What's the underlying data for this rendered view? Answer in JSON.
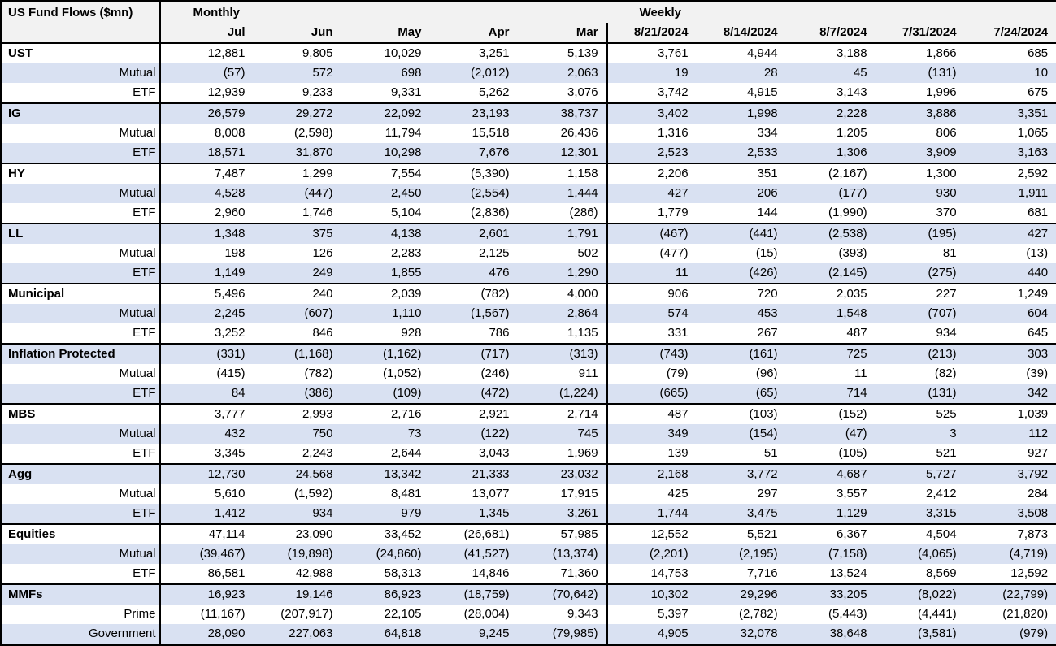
{
  "colors": {
    "band": "#d9e1f2",
    "header_bg": "#f2f2f2",
    "border": "#000000",
    "text": "#000000"
  },
  "chart_data": {
    "type": "table",
    "title": "US Fund Flows ($mn)",
    "sections": [
      {
        "label": "Monthly",
        "columns": [
          "Jul",
          "Jun",
          "May",
          "Apr",
          "Mar"
        ]
      },
      {
        "label": "Weekly",
        "columns": [
          "8/21/2024",
          "8/14/2024",
          "8/7/2024",
          "7/31/2024",
          "7/24/2024"
        ]
      }
    ],
    "groups": [
      {
        "rows": [
          {
            "label": "UST",
            "monthly": [
              "12,881",
              "9,805",
              "10,029",
              "3,251",
              "5,139"
            ],
            "weekly": [
              "3,761",
              "4,944",
              "3,188",
              "1,866",
              "685"
            ]
          },
          {
            "label": "Mutual",
            "monthly": [
              "(57)",
              "572",
              "698",
              "(2,012)",
              "2,063"
            ],
            "weekly": [
              "19",
              "28",
              "45",
              "(131)",
              "10"
            ]
          },
          {
            "label": "ETF",
            "monthly": [
              "12,939",
              "9,233",
              "9,331",
              "5,262",
              "3,076"
            ],
            "weekly": [
              "3,742",
              "4,915",
              "3,143",
              "1,996",
              "675"
            ]
          }
        ]
      },
      {
        "rows": [
          {
            "label": "IG",
            "monthly": [
              "26,579",
              "29,272",
              "22,092",
              "23,193",
              "38,737"
            ],
            "weekly": [
              "3,402",
              "1,998",
              "2,228",
              "3,886",
              "3,351"
            ]
          },
          {
            "label": "Mutual",
            "monthly": [
              "8,008",
              "(2,598)",
              "11,794",
              "15,518",
              "26,436"
            ],
            "weekly": [
              "1,316",
              "334",
              "1,205",
              "806",
              "1,065"
            ]
          },
          {
            "label": "ETF",
            "monthly": [
              "18,571",
              "31,870",
              "10,298",
              "7,676",
              "12,301"
            ],
            "weekly": [
              "2,523",
              "2,533",
              "1,306",
              "3,909",
              "3,163"
            ]
          }
        ]
      },
      {
        "rows": [
          {
            "label": "HY",
            "monthly": [
              "7,487",
              "1,299",
              "7,554",
              "(5,390)",
              "1,158"
            ],
            "weekly": [
              "2,206",
              "351",
              "(2,167)",
              "1,300",
              "2,592"
            ]
          },
          {
            "label": "Mutual",
            "monthly": [
              "4,528",
              "(447)",
              "2,450",
              "(2,554)",
              "1,444"
            ],
            "weekly": [
              "427",
              "206",
              "(177)",
              "930",
              "1,911"
            ]
          },
          {
            "label": "ETF",
            "monthly": [
              "2,960",
              "1,746",
              "5,104",
              "(2,836)",
              "(286)"
            ],
            "weekly": [
              "1,779",
              "144",
              "(1,990)",
              "370",
              "681"
            ]
          }
        ]
      },
      {
        "rows": [
          {
            "label": "LL",
            "monthly": [
              "1,348",
              "375",
              "4,138",
              "2,601",
              "1,791"
            ],
            "weekly": [
              "(467)",
              "(441)",
              "(2,538)",
              "(195)",
              "427"
            ]
          },
          {
            "label": "Mutual",
            "monthly": [
              "198",
              "126",
              "2,283",
              "2,125",
              "502"
            ],
            "weekly": [
              "(477)",
              "(15)",
              "(393)",
              "81",
              "(13)"
            ]
          },
          {
            "label": "ETF",
            "monthly": [
              "1,149",
              "249",
              "1,855",
              "476",
              "1,290"
            ],
            "weekly": [
              "11",
              "(426)",
              "(2,145)",
              "(275)",
              "440"
            ]
          }
        ]
      },
      {
        "rows": [
          {
            "label": "Municipal",
            "monthly": [
              "5,496",
              "240",
              "2,039",
              "(782)",
              "4,000"
            ],
            "weekly": [
              "906",
              "720",
              "2,035",
              "227",
              "1,249"
            ]
          },
          {
            "label": "Mutual",
            "monthly": [
              "2,245",
              "(607)",
              "1,110",
              "(1,567)",
              "2,864"
            ],
            "weekly": [
              "574",
              "453",
              "1,548",
              "(707)",
              "604"
            ]
          },
          {
            "label": "ETF",
            "monthly": [
              "3,252",
              "846",
              "928",
              "786",
              "1,135"
            ],
            "weekly": [
              "331",
              "267",
              "487",
              "934",
              "645"
            ]
          }
        ]
      },
      {
        "rows": [
          {
            "label": "Inflation Protected",
            "monthly": [
              "(331)",
              "(1,168)",
              "(1,162)",
              "(717)",
              "(313)"
            ],
            "weekly": [
              "(743)",
              "(161)",
              "725",
              "(213)",
              "303"
            ]
          },
          {
            "label": "Mutual",
            "monthly": [
              "(415)",
              "(782)",
              "(1,052)",
              "(246)",
              "911"
            ],
            "weekly": [
              "(79)",
              "(96)",
              "11",
              "(82)",
              "(39)"
            ]
          },
          {
            "label": "ETF",
            "monthly": [
              "84",
              "(386)",
              "(109)",
              "(472)",
              "(1,224)"
            ],
            "weekly": [
              "(665)",
              "(65)",
              "714",
              "(131)",
              "342"
            ]
          }
        ]
      },
      {
        "rows": [
          {
            "label": "MBS",
            "monthly": [
              "3,777",
              "2,993",
              "2,716",
              "2,921",
              "2,714"
            ],
            "weekly": [
              "487",
              "(103)",
              "(152)",
              "525",
              "1,039"
            ]
          },
          {
            "label": "Mutual",
            "monthly": [
              "432",
              "750",
              "73",
              "(122)",
              "745"
            ],
            "weekly": [
              "349",
              "(154)",
              "(47)",
              "3",
              "112"
            ]
          },
          {
            "label": "ETF",
            "monthly": [
              "3,345",
              "2,243",
              "2,644",
              "3,043",
              "1,969"
            ],
            "weekly": [
              "139",
              "51",
              "(105)",
              "521",
              "927"
            ]
          }
        ]
      },
      {
        "rows": [
          {
            "label": "Agg",
            "monthly": [
              "12,730",
              "24,568",
              "13,342",
              "21,333",
              "23,032"
            ],
            "weekly": [
              "2,168",
              "3,772",
              "4,687",
              "5,727",
              "3,792"
            ]
          },
          {
            "label": "Mutual",
            "monthly": [
              "5,610",
              "(1,592)",
              "8,481",
              "13,077",
              "17,915"
            ],
            "weekly": [
              "425",
              "297",
              "3,557",
              "2,412",
              "284"
            ]
          },
          {
            "label": "ETF",
            "monthly": [
              "1,412",
              "934",
              "979",
              "1,345",
              "3,261"
            ],
            "weekly": [
              "1,744",
              "3,475",
              "1,129",
              "3,315",
              "3,508"
            ]
          }
        ]
      },
      {
        "rows": [
          {
            "label": "Equities",
            "monthly": [
              "47,114",
              "23,090",
              "33,452",
              "(26,681)",
              "57,985"
            ],
            "weekly": [
              "12,552",
              "5,521",
              "6,367",
              "4,504",
              "7,873"
            ]
          },
          {
            "label": "Mutual",
            "monthly": [
              "(39,467)",
              "(19,898)",
              "(24,860)",
              "(41,527)",
              "(13,374)"
            ],
            "weekly": [
              "(2,201)",
              "(2,195)",
              "(7,158)",
              "(4,065)",
              "(4,719)"
            ]
          },
          {
            "label": "ETF",
            "monthly": [
              "86,581",
              "42,988",
              "58,313",
              "14,846",
              "71,360"
            ],
            "weekly": [
              "14,753",
              "7,716",
              "13,524",
              "8,569",
              "12,592"
            ]
          }
        ]
      },
      {
        "rows": [
          {
            "label": "MMFs",
            "monthly": [
              "16,923",
              "19,146",
              "86,923",
              "(18,759)",
              "(70,642)"
            ],
            "weekly": [
              "10,302",
              "29,296",
              "33,205",
              "(8,022)",
              "(22,799)"
            ]
          },
          {
            "label": "Prime",
            "monthly": [
              "(11,167)",
              "(207,917)",
              "22,105",
              "(28,004)",
              "9,343"
            ],
            "weekly": [
              "5,397",
              "(2,782)",
              "(5,443)",
              "(4,441)",
              "(21,820)"
            ]
          },
          {
            "label": "Government",
            "monthly": [
              "28,090",
              "227,063",
              "64,818",
              "9,245",
              "(79,985)"
            ],
            "weekly": [
              "4,905",
              "32,078",
              "38,648",
              "(3,581)",
              "(979)"
            ]
          }
        ]
      }
    ]
  }
}
